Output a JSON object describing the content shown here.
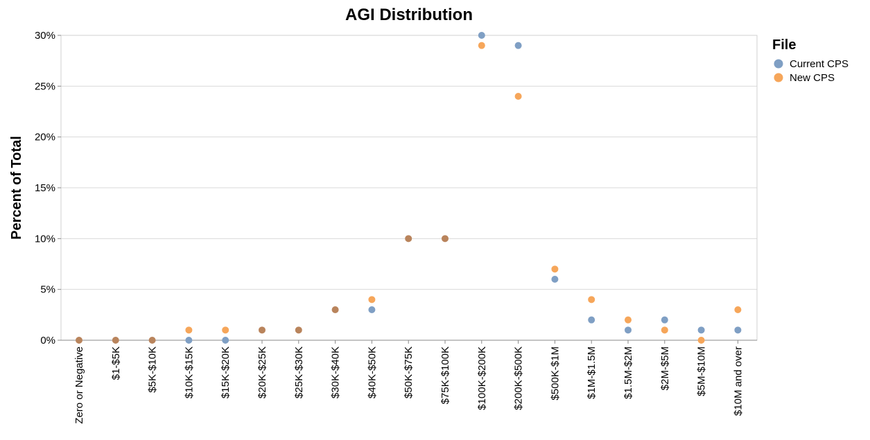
{
  "chart_data": {
    "type": "scatter",
    "title": "AGI Distribution",
    "ylabel": "Percent of Total",
    "xlabel": "",
    "ylim": [
      0,
      30
    ],
    "yticks": [
      "0%",
      "5%",
      "10%",
      "15%",
      "20%",
      "25%",
      "30%"
    ],
    "ytick_values": [
      0,
      5,
      10,
      15,
      20,
      25,
      30
    ],
    "grid": true,
    "legend": {
      "title": "File",
      "placement": "right"
    },
    "categories": [
      "Zero or Negative",
      "$1-$5K",
      "$5K-$10K",
      "$10K-$15K",
      "$15K-$20K",
      "$20K-$25K",
      "$25K-$30K",
      "$30K-$40K",
      "$40K-$50K",
      "$50K-$75K",
      "$75K-$100K",
      "$100K-$200K",
      "$200K-$500K",
      "$500K-$1M",
      "$1M-$1.5M",
      "$1.5M-$2M",
      "$2M-$5M",
      "$5M-$10M",
      "$10M and over"
    ],
    "series": [
      {
        "name": "Current CPS",
        "color": "#7f9fc4",
        "values": [
          0,
          0,
          0,
          0,
          0,
          1,
          1,
          3,
          3,
          10,
          10,
          30,
          29,
          6,
          2,
          1,
          2,
          1,
          1
        ]
      },
      {
        "name": "New CPS",
        "color": "#f6a65a",
        "values": [
          0,
          0,
          0,
          1,
          1,
          1,
          1,
          3,
          4,
          10,
          10,
          29,
          24,
          7,
          4,
          2,
          1,
          0,
          3
        ]
      }
    ],
    "overlap_color": "#b9845c"
  }
}
